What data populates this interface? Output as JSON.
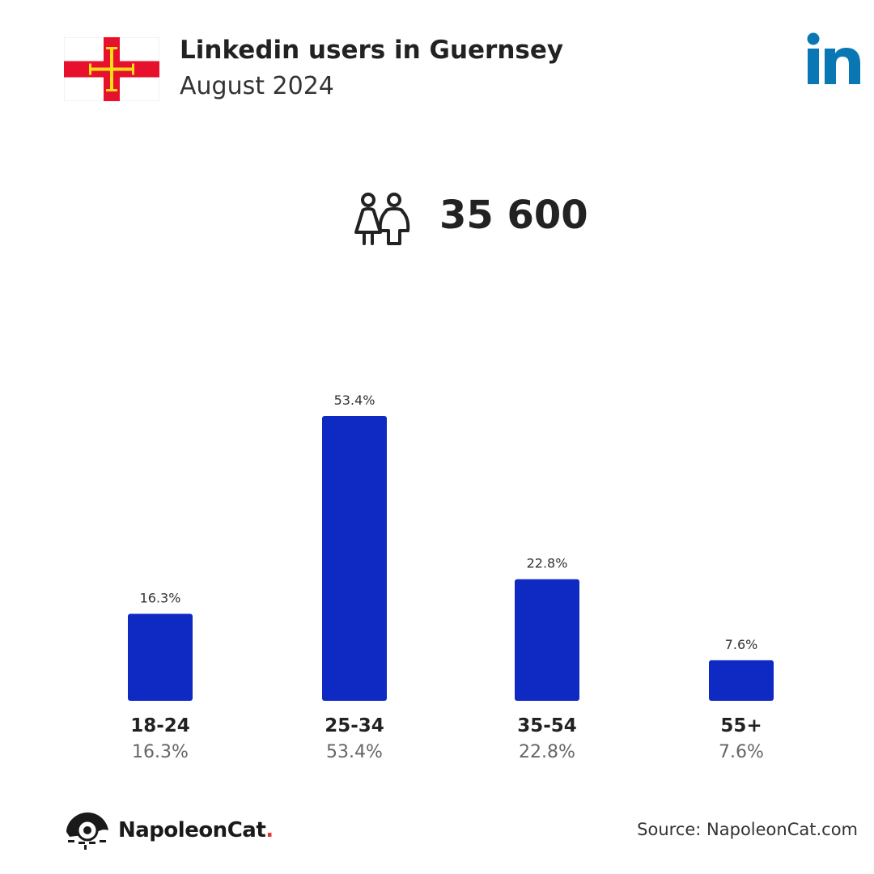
{
  "header": {
    "title": "Linkedin users in Guernsey",
    "subtitle": "August 2024"
  },
  "summary": {
    "total_users": "35 600",
    "icon": "users-icon"
  },
  "brand": {
    "name": "NapoleonCat",
    "dot": ".",
    "source_text": "Source: NapoleonCat.com"
  },
  "colors": {
    "bar": "#0f2ac3",
    "linkedin": "#0a77b5",
    "flag_red": "#e8112d",
    "flag_gold": "#f9dd16"
  },
  "chart_data": {
    "type": "bar",
    "categories": [
      "18-24",
      "25-34",
      "35-54",
      "55+"
    ],
    "values": [
      16.3,
      53.4,
      22.8,
      7.6
    ],
    "value_labels": [
      "16.3%",
      "53.4%",
      "22.8%",
      "7.6%"
    ],
    "title": "Linkedin users in Guernsey",
    "xlabel": "",
    "ylabel": "",
    "ylim": [
      0,
      53.4
    ],
    "grid": false
  }
}
